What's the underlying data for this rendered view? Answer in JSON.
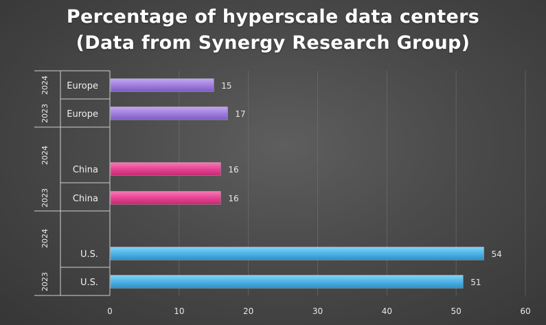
{
  "chart_data": {
    "type": "bar",
    "orientation": "horizontal",
    "title": "Percentage of hyperscale data centers",
    "subtitle": "(Data from Synergy Research Group)",
    "xlim": [
      0,
      60
    ],
    "x_ticks": [
      "0",
      "10",
      "20",
      "30",
      "40",
      "50",
      "60"
    ],
    "grid": true,
    "bars": [
      {
        "year": "2024",
        "category": "Europe",
        "value": 15,
        "color": "#a07fdf"
      },
      {
        "year": "2023",
        "category": "Europe",
        "value": 17,
        "color": "#a07fdf"
      },
      {
        "year": "2024",
        "category": "China",
        "value": 16,
        "color": "#e84393"
      },
      {
        "year": "2023",
        "category": "China",
        "value": 16,
        "color": "#e84393"
      },
      {
        "year": "2024",
        "category": "U.S.",
        "value": 54,
        "color": "#4db3e6"
      },
      {
        "year": "2023",
        "category": "U.S.",
        "value": 51,
        "color": "#4db3e6"
      }
    ]
  }
}
